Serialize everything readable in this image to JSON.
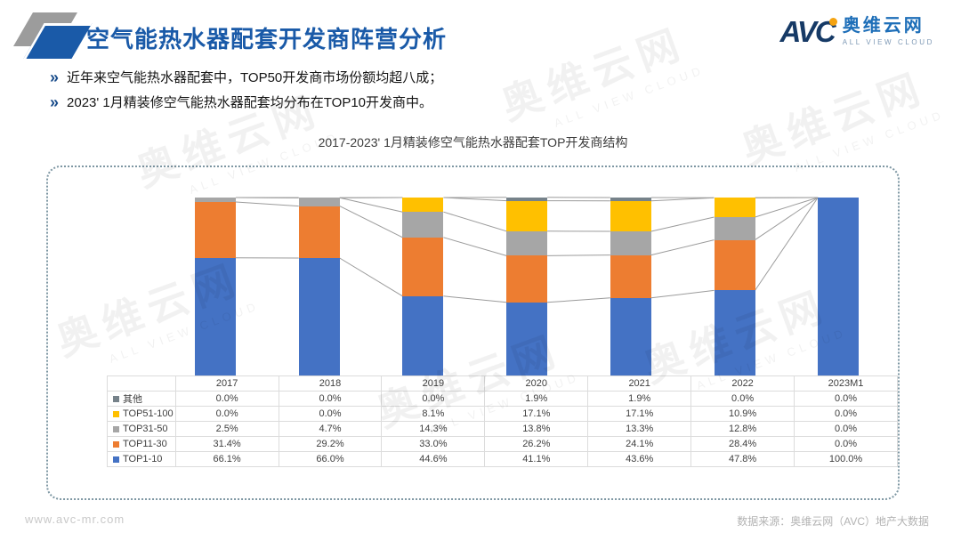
{
  "header": {
    "title": "空气能热水器配套开发商阵营分析",
    "logo": {
      "avc": "AVC",
      "cn": "奥维云网",
      "en": "ALL VIEW CLOUD"
    }
  },
  "bullets": [
    "近年来空气能热水器配套中，TOP50开发商市场份额均超八成；",
    "2023' 1月精装修空气能热水器配套均分布在TOP10开发商中。"
  ],
  "chart_data": {
    "type": "bar",
    "variant": "100%-stacked-column-with-series-lines",
    "title": "2017-2023' 1月精装修空气能热水器配套TOP开发商结构",
    "categories": [
      "2017",
      "2018",
      "2019",
      "2020",
      "2021",
      "2022",
      "2023M1"
    ],
    "series": [
      {
        "name": "TOP1-10",
        "color": "#4472C4",
        "values": [
          66.1,
          66.0,
          44.6,
          41.1,
          43.6,
          47.8,
          100.0
        ]
      },
      {
        "name": "TOP11-30",
        "color": "#ED7D31",
        "values": [
          31.4,
          29.2,
          33.0,
          26.2,
          24.1,
          28.4,
          0.0
        ]
      },
      {
        "name": "TOP31-50",
        "color": "#A6A6A6",
        "values": [
          2.5,
          4.7,
          14.3,
          13.8,
          13.3,
          12.8,
          0.0
        ]
      },
      {
        "name": "TOP51-100",
        "color": "#FFC000",
        "values": [
          0.0,
          0.0,
          8.1,
          17.1,
          17.1,
          10.9,
          0.0
        ]
      },
      {
        "name": "其他",
        "color": "#76828A",
        "values": [
          0.0,
          0.0,
          0.0,
          1.9,
          1.9,
          0.0,
          0.0
        ]
      }
    ],
    "table_row_order": [
      "其他",
      "TOP51-100",
      "TOP31-50",
      "TOP11-30",
      "TOP1-10"
    ],
    "value_suffix": "%",
    "value_decimals": 1,
    "ylim": [
      0,
      100
    ],
    "grid": false,
    "legend_position": "table-left-column"
  },
  "colors": {
    "title_blue": "#1a5aa8",
    "logo_navy": "#163a66",
    "logo_orange": "#f5a310",
    "series_line": "#9b9b9b",
    "card_border": "#7e97a3"
  },
  "watermark": {
    "cn": "奥维云网",
    "en": "ALL VIEW CLOUD"
  },
  "footer": {
    "left": "www.avc-mr.com",
    "right": "数据来源：奥维云网（AVC）地产大数据"
  }
}
